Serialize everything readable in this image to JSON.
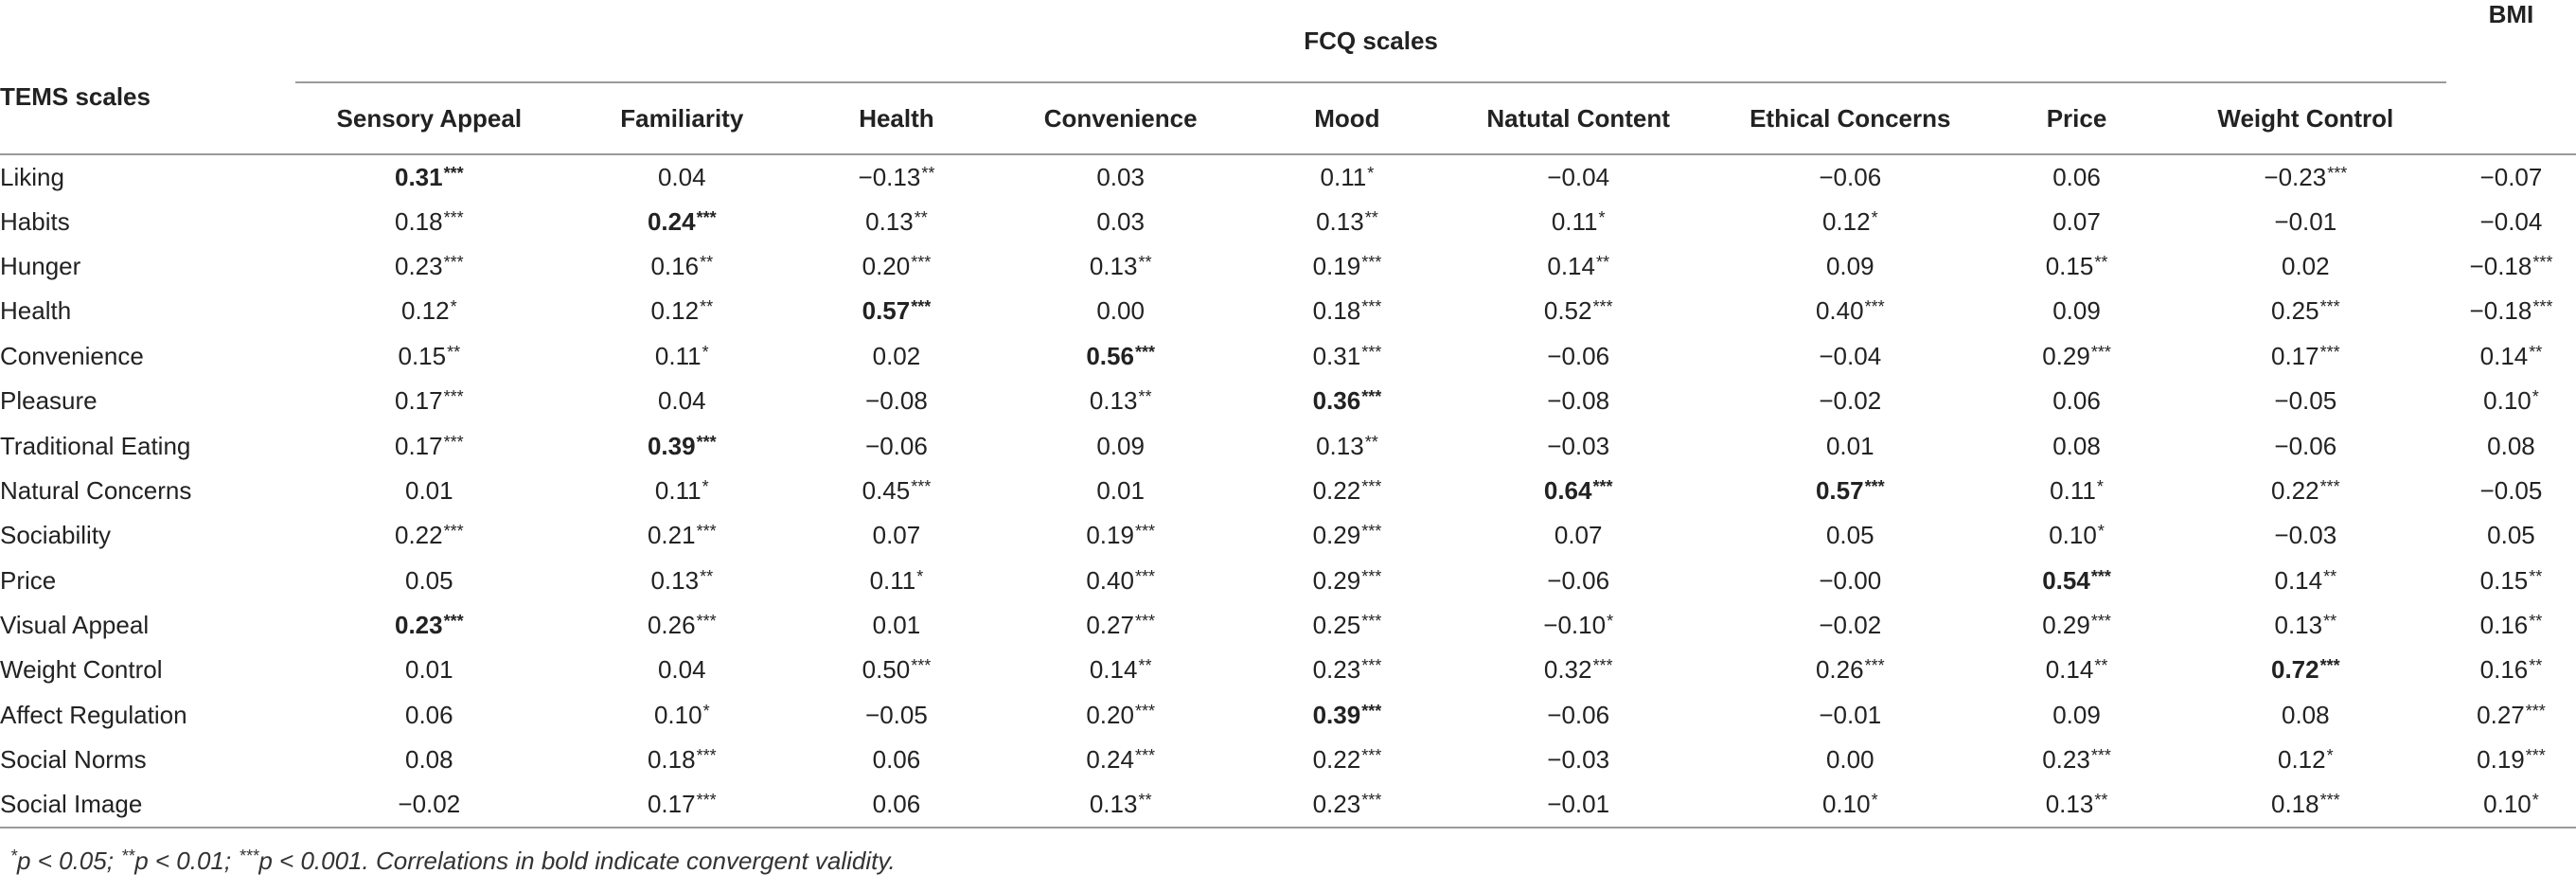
{
  "table": {
    "group_header": "FCQ scales",
    "bmi_header": "BMI",
    "row_header": "TEMS scales",
    "columns": [
      "Sensory Appeal",
      "Familiarity",
      "Health",
      "Convenience",
      "Mood",
      "Natutal Content",
      "Ethical Concerns",
      "Price",
      "Weight Control"
    ],
    "rows": [
      {
        "label": "Liking",
        "cells": [
          {
            "v": "0.31",
            "s": "***",
            "b": true
          },
          {
            "v": "0.04",
            "s": ""
          },
          {
            "v": "−0.13",
            "s": "**"
          },
          {
            "v": "0.03",
            "s": ""
          },
          {
            "v": "0.11",
            "s": "*"
          },
          {
            "v": "−0.04",
            "s": ""
          },
          {
            "v": "−0.06",
            "s": ""
          },
          {
            "v": "0.06",
            "s": ""
          },
          {
            "v": "−0.23",
            "s": "***"
          },
          {
            "v": "−0.07",
            "s": ""
          }
        ]
      },
      {
        "label": "Habits",
        "cells": [
          {
            "v": "0.18",
            "s": "***"
          },
          {
            "v": "0.24",
            "s": "***",
            "b": true
          },
          {
            "v": "0.13",
            "s": "**"
          },
          {
            "v": "0.03",
            "s": ""
          },
          {
            "v": "0.13",
            "s": "**"
          },
          {
            "v": "0.11",
            "s": "*"
          },
          {
            "v": "0.12",
            "s": "*"
          },
          {
            "v": "0.07",
            "s": ""
          },
          {
            "v": "−0.01",
            "s": ""
          },
          {
            "v": "−0.04",
            "s": ""
          }
        ]
      },
      {
        "label": "Hunger",
        "cells": [
          {
            "v": "0.23",
            "s": "***"
          },
          {
            "v": "0.16",
            "s": "**"
          },
          {
            "v": "0.20",
            "s": "***"
          },
          {
            "v": "0.13",
            "s": "**"
          },
          {
            "v": "0.19",
            "s": "***"
          },
          {
            "v": "0.14",
            "s": "**"
          },
          {
            "v": "0.09",
            "s": ""
          },
          {
            "v": "0.15",
            "s": "**"
          },
          {
            "v": "0.02",
            "s": ""
          },
          {
            "v": "−0.18",
            "s": "***"
          }
        ]
      },
      {
        "label": "Health",
        "cells": [
          {
            "v": "0.12",
            "s": "*"
          },
          {
            "v": "0.12",
            "s": "**"
          },
          {
            "v": "0.57",
            "s": "***",
            "b": true
          },
          {
            "v": "0.00",
            "s": ""
          },
          {
            "v": "0.18",
            "s": "***"
          },
          {
            "v": "0.52",
            "s": "***"
          },
          {
            "v": "0.40",
            "s": "***"
          },
          {
            "v": "0.09",
            "s": ""
          },
          {
            "v": "0.25",
            "s": "***"
          },
          {
            "v": "−0.18",
            "s": "***"
          }
        ]
      },
      {
        "label": "Convenience",
        "cells": [
          {
            "v": "0.15",
            "s": "**"
          },
          {
            "v": "0.11",
            "s": "*"
          },
          {
            "v": "0.02",
            "s": ""
          },
          {
            "v": "0.56",
            "s": "***",
            "b": true
          },
          {
            "v": "0.31",
            "s": "***"
          },
          {
            "v": "−0.06",
            "s": ""
          },
          {
            "v": "−0.04",
            "s": ""
          },
          {
            "v": "0.29",
            "s": "***"
          },
          {
            "v": "0.17",
            "s": "***"
          },
          {
            "v": "0.14",
            "s": "**"
          }
        ]
      },
      {
        "label": "Pleasure",
        "cells": [
          {
            "v": "0.17",
            "s": "***"
          },
          {
            "v": "0.04",
            "s": ""
          },
          {
            "v": "−0.08",
            "s": ""
          },
          {
            "v": "0.13",
            "s": "**"
          },
          {
            "v": "0.36",
            "s": "***",
            "b": true
          },
          {
            "v": "−0.08",
            "s": ""
          },
          {
            "v": "−0.02",
            "s": ""
          },
          {
            "v": "0.06",
            "s": ""
          },
          {
            "v": "−0.05",
            "s": ""
          },
          {
            "v": "0.10",
            "s": "*"
          }
        ]
      },
      {
        "label": "Traditional Eating",
        "cells": [
          {
            "v": "0.17",
            "s": "***"
          },
          {
            "v": "0.39",
            "s": "***",
            "b": true
          },
          {
            "v": "−0.06",
            "s": ""
          },
          {
            "v": "0.09",
            "s": ""
          },
          {
            "v": "0.13",
            "s": "**"
          },
          {
            "v": "−0.03",
            "s": ""
          },
          {
            "v": "0.01",
            "s": ""
          },
          {
            "v": "0.08",
            "s": ""
          },
          {
            "v": "−0.06",
            "s": ""
          },
          {
            "v": "0.08",
            "s": ""
          }
        ]
      },
      {
        "label": "Natural Concerns",
        "cells": [
          {
            "v": "0.01",
            "s": ""
          },
          {
            "v": "0.11",
            "s": "*"
          },
          {
            "v": "0.45",
            "s": "***"
          },
          {
            "v": "0.01",
            "s": ""
          },
          {
            "v": "0.22",
            "s": "***"
          },
          {
            "v": "0.64",
            "s": "***",
            "b": true
          },
          {
            "v": "0.57",
            "s": "***",
            "b": true
          },
          {
            "v": "0.11",
            "s": "*"
          },
          {
            "v": "0.22",
            "s": "***"
          },
          {
            "v": "−0.05",
            "s": ""
          }
        ]
      },
      {
        "label": "Sociability",
        "cells": [
          {
            "v": "0.22",
            "s": "***"
          },
          {
            "v": "0.21",
            "s": "***"
          },
          {
            "v": "0.07",
            "s": ""
          },
          {
            "v": "0.19",
            "s": "***"
          },
          {
            "v": "0.29",
            "s": "***"
          },
          {
            "v": "0.07",
            "s": ""
          },
          {
            "v": "0.05",
            "s": ""
          },
          {
            "v": "0.10",
            "s": "*"
          },
          {
            "v": "−0.03",
            "s": ""
          },
          {
            "v": "0.05",
            "s": ""
          }
        ]
      },
      {
        "label": "Price",
        "cells": [
          {
            "v": "0.05",
            "s": ""
          },
          {
            "v": "0.13",
            "s": "**"
          },
          {
            "v": "0.11",
            "s": "*"
          },
          {
            "v": "0.40",
            "s": "***"
          },
          {
            "v": "0.29",
            "s": "***"
          },
          {
            "v": "−0.06",
            "s": ""
          },
          {
            "v": "−0.00",
            "s": ""
          },
          {
            "v": "0.54",
            "s": "***",
            "b": true
          },
          {
            "v": "0.14",
            "s": "**"
          },
          {
            "v": "0.15",
            "s": "**"
          }
        ]
      },
      {
        "label": "Visual Appeal",
        "cells": [
          {
            "v": "0.23",
            "s": "***",
            "b": true
          },
          {
            "v": "0.26",
            "s": "***"
          },
          {
            "v": "0.01",
            "s": ""
          },
          {
            "v": "0.27",
            "s": "***"
          },
          {
            "v": "0.25",
            "s": "***"
          },
          {
            "v": "−0.10",
            "s": "*"
          },
          {
            "v": "−0.02",
            "s": ""
          },
          {
            "v": "0.29",
            "s": "***"
          },
          {
            "v": "0.13",
            "s": "**"
          },
          {
            "v": "0.16",
            "s": "**"
          }
        ]
      },
      {
        "label": "Weight Control",
        "cells": [
          {
            "v": "0.01",
            "s": ""
          },
          {
            "v": "0.04",
            "s": ""
          },
          {
            "v": "0.50",
            "s": "***"
          },
          {
            "v": "0.14",
            "s": "**"
          },
          {
            "v": "0.23",
            "s": "***"
          },
          {
            "v": "0.32",
            "s": "***"
          },
          {
            "v": "0.26",
            "s": "***"
          },
          {
            "v": "0.14",
            "s": "**"
          },
          {
            "v": "0.72",
            "s": "***",
            "b": true
          },
          {
            "v": "0.16",
            "s": "**"
          }
        ]
      },
      {
        "label": "Affect Regulation",
        "cells": [
          {
            "v": "0.06",
            "s": ""
          },
          {
            "v": "0.10",
            "s": "*"
          },
          {
            "v": "−0.05",
            "s": ""
          },
          {
            "v": "0.20",
            "s": "***"
          },
          {
            "v": "0.39",
            "s": "***",
            "b": true
          },
          {
            "v": "−0.06",
            "s": ""
          },
          {
            "v": "−0.01",
            "s": ""
          },
          {
            "v": "0.09",
            "s": ""
          },
          {
            "v": "0.08",
            "s": ""
          },
          {
            "v": "0.27",
            "s": "***"
          }
        ]
      },
      {
        "label": "Social Norms",
        "cells": [
          {
            "v": "0.08",
            "s": ""
          },
          {
            "v": "0.18",
            "s": "***"
          },
          {
            "v": "0.06",
            "s": ""
          },
          {
            "v": "0.24",
            "s": "***"
          },
          {
            "v": "0.22",
            "s": "***"
          },
          {
            "v": "−0.03",
            "s": ""
          },
          {
            "v": "0.00",
            "s": ""
          },
          {
            "v": "0.23",
            "s": "***"
          },
          {
            "v": "0.12",
            "s": "*"
          },
          {
            "v": "0.19",
            "s": "***"
          }
        ]
      },
      {
        "label": "Social Image",
        "cells": [
          {
            "v": "−0.02",
            "s": ""
          },
          {
            "v": "0.17",
            "s": "***"
          },
          {
            "v": "0.06",
            "s": ""
          },
          {
            "v": "0.13",
            "s": "**"
          },
          {
            "v": "0.23",
            "s": "***"
          },
          {
            "v": "−0.01",
            "s": ""
          },
          {
            "v": "0.10",
            "s": "*"
          },
          {
            "v": "0.13",
            "s": "**"
          },
          {
            "v": "0.18",
            "s": "***"
          },
          {
            "v": "0.10",
            "s": "*"
          }
        ]
      }
    ]
  },
  "footnote": {
    "p1_mark": "*",
    "p1": "p < 0.05; ",
    "p2_mark": "**",
    "p2": "p < 0.01; ",
    "p3_mark": "***",
    "p3": "p < 0.001. Correlations in bold indicate convergent validity."
  }
}
